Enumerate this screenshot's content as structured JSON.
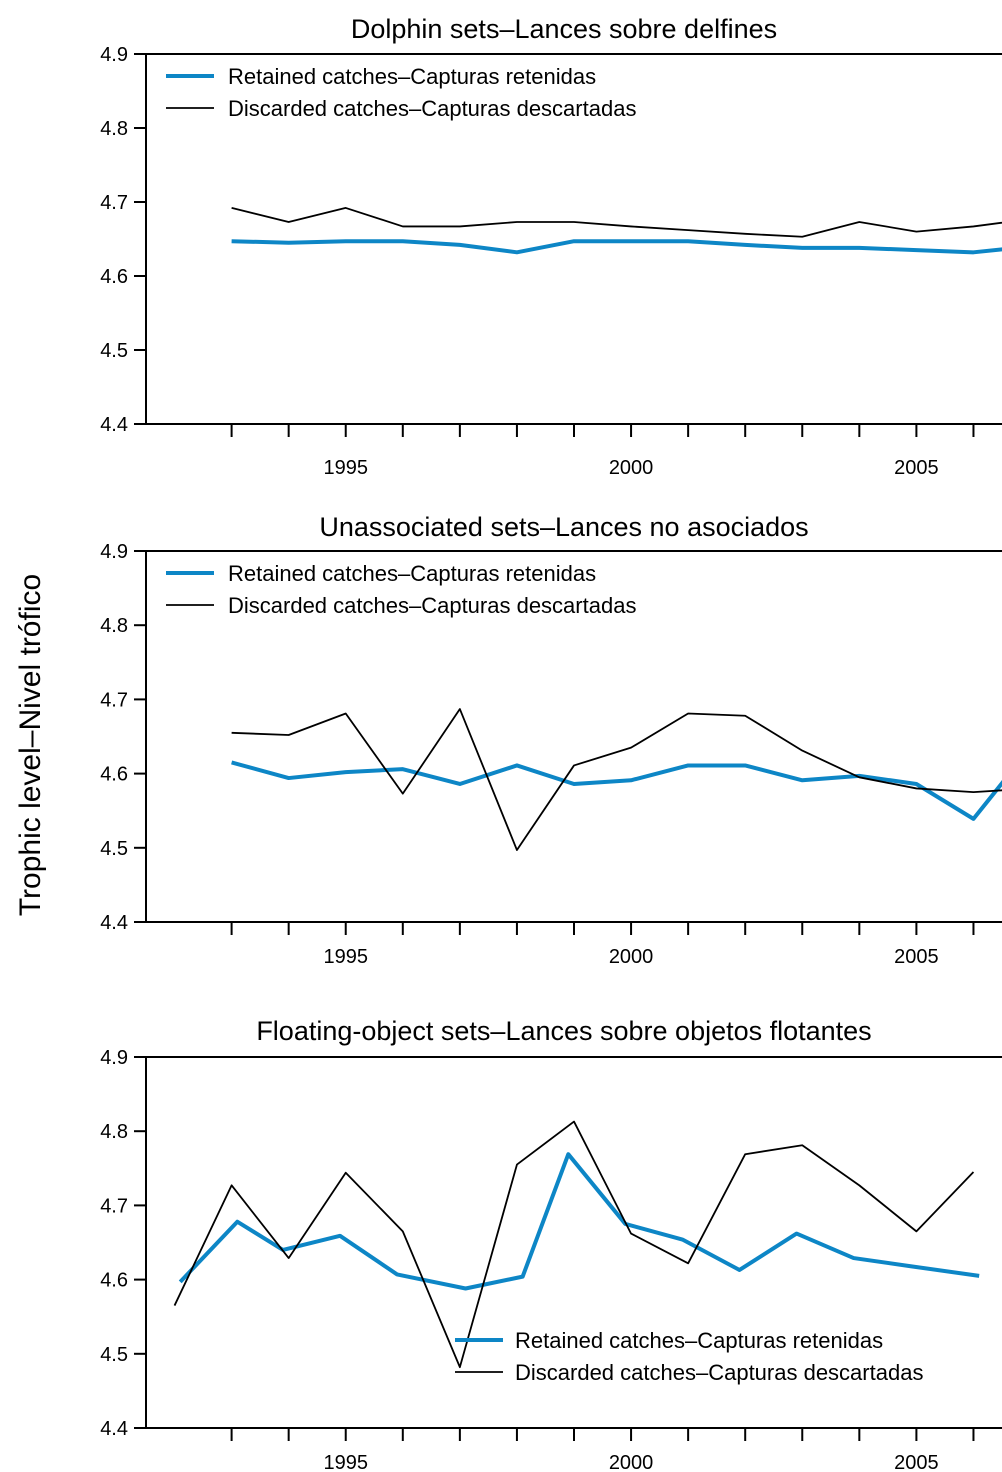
{
  "figure": {
    "ylabel": "Trophic level–Nivel trófico"
  },
  "chart_data": [
    {
      "type": "line",
      "title": "Dolphin sets–Lances sobre delfines",
      "xlabel": "",
      "ylabel": "Trophic level–Nivel trófico",
      "xlim": [
        1992,
        2007
      ],
      "ylim": [
        4.4,
        4.9
      ],
      "y_ticks": [
        4.4,
        4.5,
        4.6,
        4.7,
        4.8,
        4.9
      ],
      "x_tick_labels": [
        "1995",
        "2000",
        "2005"
      ],
      "x_minor_ticks": [
        1993,
        1994,
        1995,
        1996,
        1997,
        1998,
        1999,
        2000,
        2001,
        2002,
        2003,
        2004,
        2005,
        2006
      ],
      "grid": false,
      "legend_position": "top-left",
      "x": [
        1993,
        1994,
        1995,
        1996,
        1997,
        1998,
        1999,
        2000,
        2001,
        2002,
        2003,
        2004,
        2005,
        2006,
        2007
      ],
      "series": [
        {
          "name": "Retained catches–Capturas retenidas",
          "color": "#0d86c6",
          "values": [
            4.647,
            4.645,
            4.647,
            4.647,
            4.642,
            4.632,
            4.647,
            4.647,
            4.647,
            4.642,
            4.638,
            4.638,
            4.635,
            4.632,
            4.64
          ]
        },
        {
          "name": "Discarded catches–Capturas descartadas",
          "color": "#000000",
          "values": [
            4.692,
            4.673,
            4.692,
            4.667,
            4.667,
            4.673,
            4.673,
            4.667,
            4.662,
            4.657,
            4.653,
            4.673,
            4.66,
            4.667,
            4.677
          ]
        }
      ]
    },
    {
      "type": "line",
      "title": "Unassociated sets–Lances no asociados",
      "xlabel": "",
      "ylabel": "Trophic level–Nivel trófico",
      "xlim": [
        1992,
        2007
      ],
      "ylim": [
        4.4,
        4.9
      ],
      "y_ticks": [
        4.4,
        4.5,
        4.6,
        4.7,
        4.8,
        4.9
      ],
      "x_tick_labels": [
        "1995",
        "2000",
        "2005"
      ],
      "x_minor_ticks": [
        1993,
        1994,
        1995,
        1996,
        1997,
        1998,
        1999,
        2000,
        2001,
        2002,
        2003,
        2004,
        2005,
        2006
      ],
      "grid": false,
      "legend_position": "top-left",
      "x": [
        1993,
        1994,
        1995,
        1996,
        1997,
        1998,
        1999,
        2000,
        2001,
        2002,
        2003,
        2004,
        2005,
        2006,
        2007
      ],
      "series": [
        {
          "name": "Retained catches–Capturas retenidas",
          "color": "#0d86c6",
          "values": [
            4.615,
            4.594,
            4.602,
            4.606,
            4.586,
            4.611,
            4.586,
            4.591,
            4.611,
            4.611,
            4.591,
            4.597,
            4.586,
            4.539,
            4.635
          ]
        },
        {
          "name": "Discarded catches–Capturas descartadas",
          "color": "#000000",
          "values": [
            4.655,
            4.652,
            4.681,
            4.573,
            4.687,
            4.497,
            4.611,
            4.635,
            4.681,
            4.678,
            4.631,
            4.595,
            4.58,
            4.575,
            4.58
          ]
        }
      ]
    },
    {
      "type": "line",
      "title": "Floating-object sets–Lances sobre objetos flotantes",
      "xlabel": "",
      "ylabel": "Trophic level–Nivel trófico",
      "xlim": [
        1992,
        2007
      ],
      "ylim": [
        4.4,
        4.9
      ],
      "y_ticks": [
        4.4,
        4.5,
        4.6,
        4.7,
        4.8,
        4.9
      ],
      "x_tick_labels": [
        "1995",
        "2000",
        "2005"
      ],
      "x_minor_ticks": [
        1993,
        1994,
        1995,
        1996,
        1997,
        1998,
        1999,
        2000,
        2001,
        2002,
        2003,
        2004,
        2005,
        2006
      ],
      "grid": false,
      "legend_position": "bottom-right",
      "x": [
        1992.2,
        1993,
        1994,
        1995,
        1996,
        1997,
        1998,
        1999,
        2000,
        2001,
        2002,
        2003,
        2004,
        2005,
        2006,
        2007
      ],
      "series": [
        {
          "name": "Retained catches–Capturas retenidas",
          "color": "#0d86c6",
          "values": [
            4.597,
            4.678,
            4.64,
            4.659,
            4.607,
            4.588,
            4.604,
            4.769,
            4.675,
            4.654,
            4.613,
            4.662,
            4.629,
            4.618,
            4.605
          ],
          "x": [
            1992.6,
            1993.6,
            1994.4,
            1995.4,
            1996.4,
            1997.6,
            1998.6,
            1999.4,
            2000.4,
            2001.4,
            2002.4,
            2003.4,
            2004.4,
            2005.4,
            2006.6
          ]
        },
        {
          "name": "Discarded catches–Capturas descartadas",
          "color": "#000000",
          "values": [
            4.565,
            4.727,
            4.629,
            4.744,
            4.665,
            4.482,
            4.755,
            4.813,
            4.662,
            4.622,
            4.769,
            4.781,
            4.727,
            4.665,
            4.745
          ],
          "x": [
            1992.5,
            1993.5,
            1994.5,
            1995.5,
            1996.5,
            1997.5,
            1998.5,
            1999.5,
            2000.5,
            2001.5,
            2002.5,
            2003.5,
            2004.5,
            2005.5,
            2006.5
          ]
        }
      ]
    }
  ]
}
